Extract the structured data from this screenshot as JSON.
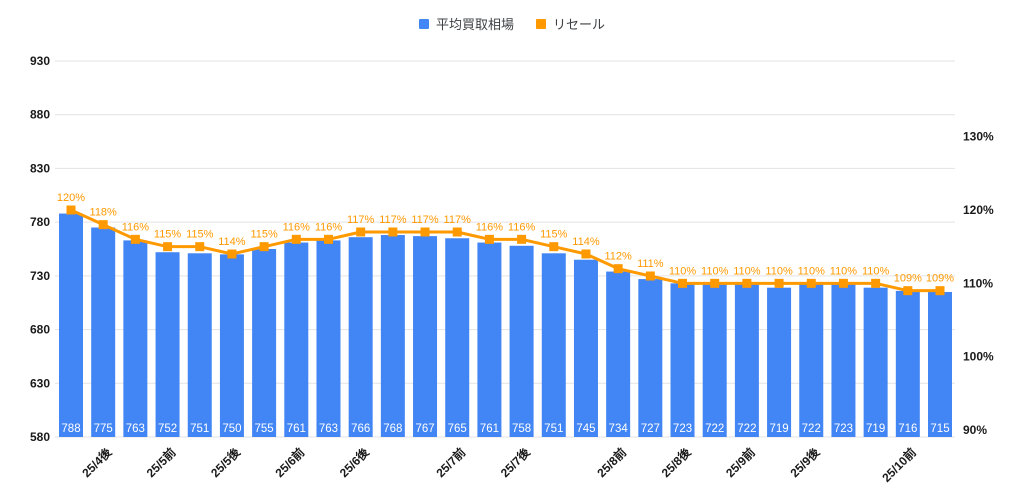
{
  "legend": {
    "items": [
      {
        "label": "平均買取相場",
        "color": "#4285F4",
        "icon": "blue-square-swatch"
      },
      {
        "label": "リセール",
        "color": "#FF9900",
        "icon": "orange-square-swatch"
      }
    ]
  },
  "chart_data": {
    "type": "bar",
    "subtype": "combo-bar-line-dual-axis",
    "title": "",
    "legend_position": "top",
    "grid": true,
    "point_count": 28,
    "series": [
      {
        "name": "平均買取相場",
        "type": "bar",
        "axis": "left",
        "color": "#4285F4",
        "value_label_color": "#ffffff",
        "values": [
          788,
          775,
          763,
          752,
          751,
          750,
          755,
          761,
          763,
          766,
          768,
          767,
          765,
          761,
          758,
          751,
          745,
          734,
          727,
          723,
          722,
          722,
          719,
          722,
          723,
          719,
          716,
          715
        ]
      },
      {
        "name": "リセール",
        "type": "line",
        "axis": "right",
        "color": "#FF9900",
        "label_suffix": "%",
        "values": [
          120,
          118,
          116,
          115,
          115,
          114,
          115,
          116,
          116,
          117,
          117,
          117,
          117,
          116,
          116,
          115,
          114,
          112,
          111,
          110,
          110,
          110,
          110,
          110,
          110,
          110,
          109,
          109
        ]
      }
    ],
    "x_axis": {
      "tick_labels": [
        {
          "label": "25/4後",
          "index": 1
        },
        {
          "label": "25/5前",
          "index": 3
        },
        {
          "label": "25/5後",
          "index": 5
        },
        {
          "label": "25/6前",
          "index": 7
        },
        {
          "label": "25/6後",
          "index": 9
        },
        {
          "label": "25/7前",
          "index": 12
        },
        {
          "label": "25/7後",
          "index": 14
        },
        {
          "label": "25/8前",
          "index": 17
        },
        {
          "label": "25/8後",
          "index": 19
        },
        {
          "label": "25/9前",
          "index": 21
        },
        {
          "label": "25/9後",
          "index": 23
        },
        {
          "label": "25/10前",
          "index": 26
        }
      ]
    },
    "left_axis": {
      "ticks": [
        930,
        880,
        830,
        780,
        730,
        680,
        630,
        580
      ],
      "min": 580,
      "max": 930
    },
    "right_axis": {
      "ticks": [
        "130%",
        "120%",
        "110%",
        "100%",
        "90%"
      ],
      "min_pct": 90,
      "max_pct": 130
    },
    "colors": {
      "bar": "#4285F4",
      "line": "#FF9900",
      "grid": "#e3e3e3",
      "axis_text": "#1a1a1a"
    }
  }
}
